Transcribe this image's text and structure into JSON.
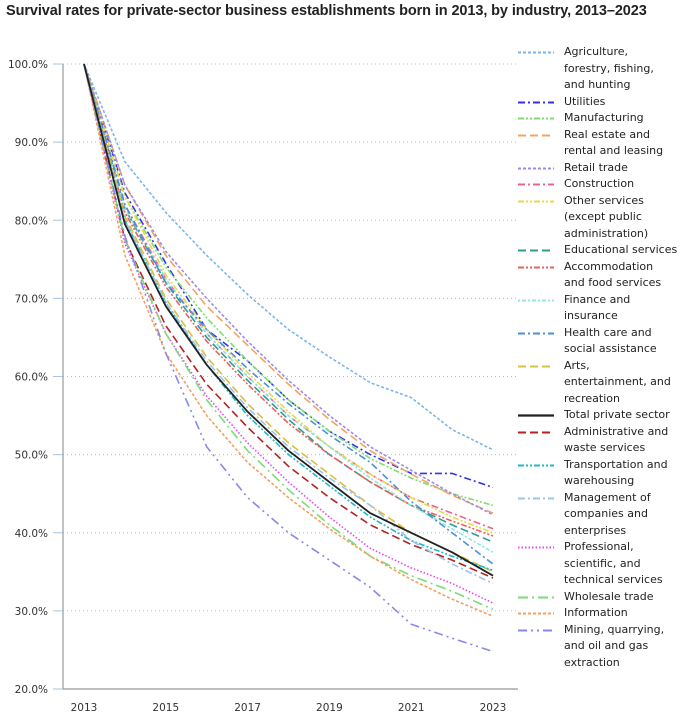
{
  "chart_data": {
    "type": "line",
    "title": "Survival rates for private-sector business establishments born in 2013, by industry, 2013–2023",
    "xlabel": "",
    "ylabel": "",
    "x": [
      2013,
      2014,
      2015,
      2016,
      2017,
      2018,
      2019,
      2020,
      2021,
      2022,
      2023
    ],
    "x_tick_labels": [
      "2013",
      "2015",
      "2017",
      "2019",
      "2021",
      "2023"
    ],
    "y_tick_labels": [
      "20.0%",
      "30.0%",
      "40.0%",
      "50.0%",
      "60.0%",
      "70.0%",
      "80.0%",
      "90.0%",
      "100.0%"
    ],
    "ylim": [
      20,
      100
    ],
    "grid": "horizontal dotted",
    "legend_position": "right",
    "series": [
      {
        "name": "Agriculture, forestry, fishing, and hunting",
        "color": "#7cb5ec",
        "dash": "dash-short",
        "values": [
          100,
          87.5,
          81.0,
          75.5,
          70.5,
          66.0,
          62.5,
          59.2,
          57.3,
          53.2,
          50.6
        ]
      },
      {
        "name": "Utilities",
        "color": "#3333ee",
        "dash": "dash-dot",
        "values": [
          100,
          83.5,
          74.5,
          66.0,
          62.0,
          57.0,
          53.0,
          50.0,
          47.6,
          47.6,
          45.8
        ]
      },
      {
        "name": "Manufacturing",
        "color": "#7fdd6f",
        "dash": "dash-dot-dot",
        "values": [
          100,
          83.0,
          74.0,
          67.5,
          62.0,
          57.0,
          53.0,
          49.5,
          47.0,
          45.0,
          43.5
        ]
      },
      {
        "name": "Real estate and rental and leasing",
        "color": "#f4a460",
        "dash": "dash-long",
        "values": [
          100,
          84.5,
          75.5,
          69.0,
          64.0,
          59.0,
          54.5,
          50.5,
          47.5,
          44.8,
          42.5
        ]
      },
      {
        "name": "Retail trade",
        "color": "#9b8ce8",
        "dash": "dash-short",
        "values": [
          100,
          84.5,
          76.0,
          70.0,
          64.5,
          59.5,
          55.0,
          51.0,
          48.0,
          45.0,
          42.3
        ]
      },
      {
        "name": "Construction",
        "color": "#f06090",
        "dash": "dash-dot",
        "values": [
          100,
          82.0,
          72.5,
          65.5,
          60.0,
          55.0,
          51.0,
          47.5,
          44.5,
          42.5,
          40.5
        ]
      },
      {
        "name": "Other services (except public administration)",
        "color": "#e8d84a",
        "dash": "dash-dot-dot",
        "values": [
          100,
          83.0,
          73.0,
          66.0,
          60.5,
          55.5,
          51.0,
          47.5,
          44.5,
          42.0,
          40.0
        ]
      },
      {
        "name": "Educational services",
        "color": "#2e9e8e",
        "dash": "dash-long",
        "values": [
          100,
          81.5,
          72.0,
          65.0,
          59.5,
          54.5,
          50.0,
          46.5,
          43.5,
          41.0,
          38.8
        ]
      },
      {
        "name": "Accommodation and food services",
        "color": "#ee6060",
        "dash": "dash-dot-dot",
        "values": [
          100,
          81.0,
          71.5,
          64.5,
          59.0,
          54.0,
          50.0,
          46.5,
          43.5,
          41.5,
          39.6
        ]
      },
      {
        "name": "Finance and insurance",
        "color": "#8ce8e0",
        "dash": "dotted-dash",
        "values": [
          100,
          81.5,
          72.5,
          65.5,
          60.0,
          55.0,
          51.0,
          47.0,
          43.5,
          40.5,
          37.5
        ]
      },
      {
        "name": "Health care and social assistance",
        "color": "#4a90d9",
        "dash": "dash-dot",
        "values": [
          100,
          82.0,
          72.0,
          66.0,
          61.0,
          56.5,
          52.5,
          49.0,
          44.0,
          40.0,
          36.0
        ]
      },
      {
        "name": "Arts, entertainment, and recreation",
        "color": "#d8c040",
        "dash": "dash-long",
        "values": [
          100,
          80.5,
          70.0,
          62.5,
          56.5,
          51.5,
          47.5,
          43.5,
          40.0,
          37.5,
          35.0
        ]
      },
      {
        "name": "Total private sector",
        "color": "#222222",
        "dash": "solid",
        "values": [
          100,
          79.5,
          69.0,
          61.5,
          55.5,
          50.5,
          46.5,
          42.5,
          40.0,
          37.5,
          34.5
        ]
      },
      {
        "name": "Administrative and waste services",
        "color": "#b22222",
        "dash": "dash-long",
        "values": [
          100,
          77.5,
          66.5,
          59.0,
          53.5,
          48.5,
          44.5,
          41.0,
          38.5,
          36.5,
          34.2
        ]
      },
      {
        "name": "Transportation and warehousing",
        "color": "#20b8c8",
        "dash": "dash-dot-dot",
        "values": [
          100,
          80.0,
          69.5,
          61.5,
          55.0,
          50.0,
          46.0,
          42.0,
          39.0,
          37.0,
          35.2
        ]
      },
      {
        "name": "Management of companies and enterprises",
        "color": "#9cc4ec",
        "dash": "dash-dot",
        "values": [
          100,
          80.0,
          69.5,
          62.0,
          56.0,
          51.0,
          47.0,
          43.5,
          39.0,
          36.0,
          33.5
        ]
      },
      {
        "name": "Professional, scientific, and technical services",
        "color": "#ee44ee",
        "dash": "dotted",
        "values": [
          100,
          77.0,
          65.5,
          57.5,
          51.5,
          46.5,
          42.0,
          38.0,
          35.5,
          33.5,
          31.0
        ]
      },
      {
        "name": "Wholesale trade",
        "color": "#77dd77",
        "dash": "dash-dot-long",
        "values": [
          100,
          77.5,
          65.5,
          57.0,
          50.5,
          45.5,
          41.0,
          37.0,
          34.5,
          32.5,
          30.2
        ]
      },
      {
        "name": "Information",
        "color": "#f4a060",
        "dash": "dash-short",
        "values": [
          100,
          75.5,
          63.0,
          55.0,
          49.0,
          44.5,
          40.5,
          37.0,
          34.0,
          31.5,
          29.3
        ]
      },
      {
        "name": "Mining, quarrying, and oil and gas extraction",
        "color": "#8888e8",
        "dash": "dash-dot-dot-long",
        "values": [
          100,
          78.0,
          63.0,
          51.0,
          44.5,
          40.0,
          36.5,
          33.0,
          28.3,
          26.5,
          24.8
        ]
      }
    ]
  },
  "legend": {
    "items": [
      {
        "lines": [
          "Agriculture,",
          "forestry, fishing,",
          "and hunting"
        ]
      },
      {
        "lines": [
          "Utilities"
        ]
      },
      {
        "lines": [
          "Manufacturing"
        ]
      },
      {
        "lines": [
          "Real estate and",
          "rental and leasing"
        ]
      },
      {
        "lines": [
          "Retail trade"
        ]
      },
      {
        "lines": [
          "Construction"
        ]
      },
      {
        "lines": [
          "Other services",
          "(except public",
          "administration)"
        ]
      },
      {
        "lines": [
          "Educational services"
        ]
      },
      {
        "lines": [
          "Accommodation",
          "and food services"
        ]
      },
      {
        "lines": [
          "Finance and",
          "insurance"
        ]
      },
      {
        "lines": [
          "Health care and",
          "social assistance"
        ]
      },
      {
        "lines": [
          "Arts,",
          "entertainment, and",
          "recreation"
        ]
      },
      {
        "lines": [
          "Total private sector"
        ]
      },
      {
        "lines": [
          "Administrative and",
          "waste services"
        ]
      },
      {
        "lines": [
          "Transportation and",
          "warehousing"
        ]
      },
      {
        "lines": [
          "Management of",
          "companies and",
          "enterprises"
        ]
      },
      {
        "lines": [
          "Professional,",
          "scientific, and",
          "technical services"
        ]
      },
      {
        "lines": [
          "Wholesale trade"
        ]
      },
      {
        "lines": [
          "Information"
        ]
      },
      {
        "lines": [
          "Mining, quarrying,",
          "and oil and gas",
          "extraction"
        ]
      }
    ]
  }
}
